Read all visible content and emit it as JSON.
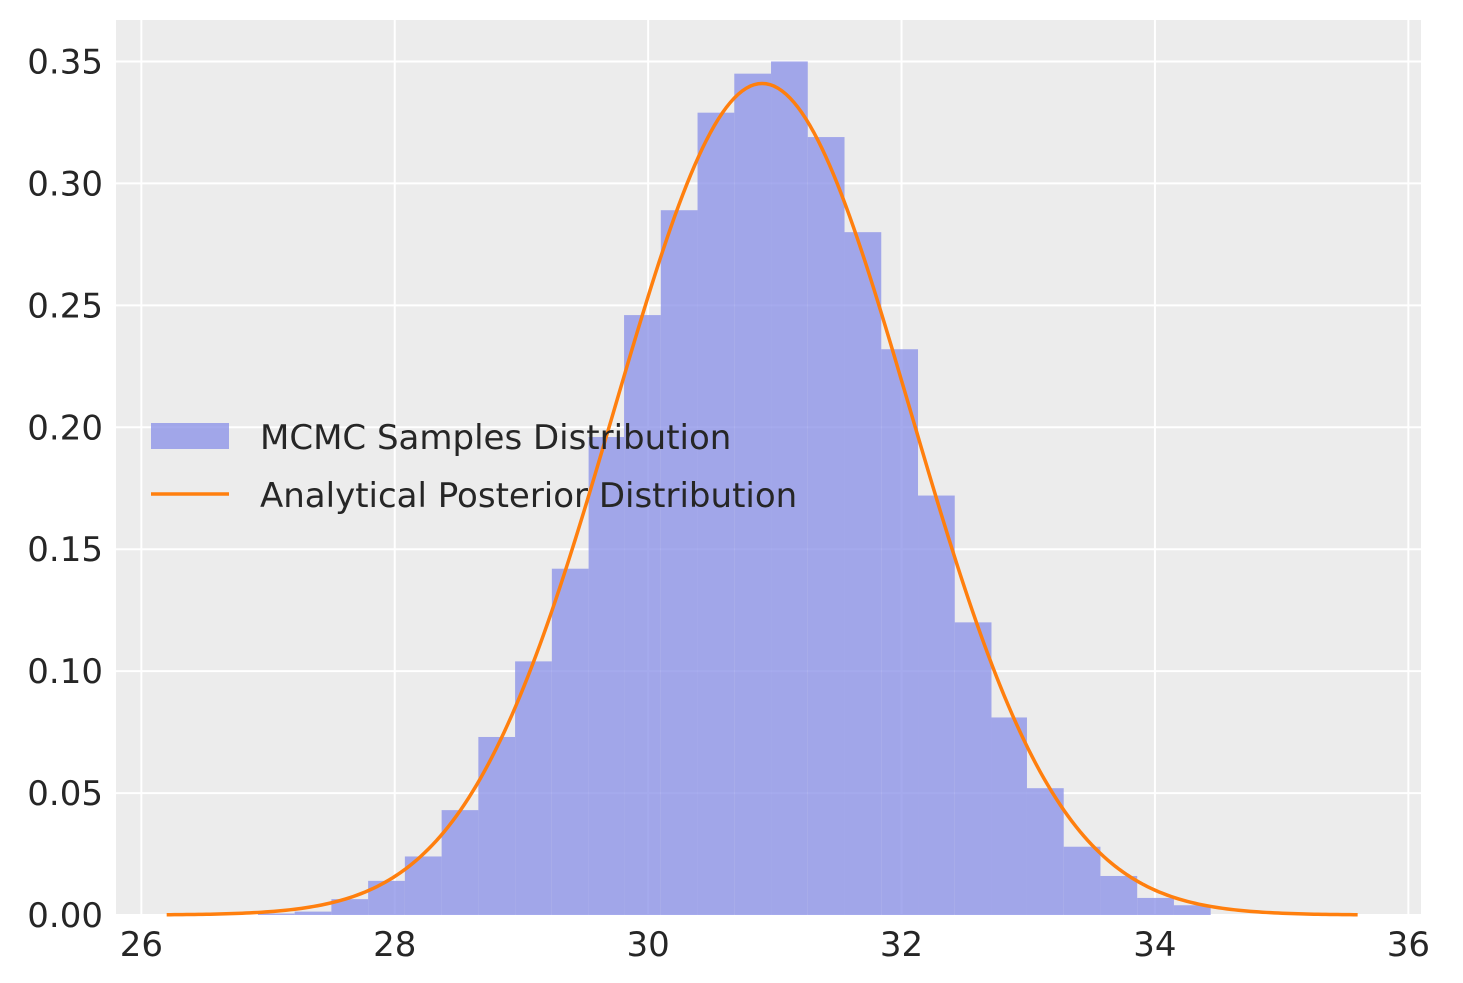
{
  "chart_data": {
    "type": "bar",
    "title": "",
    "xlabel": "",
    "ylabel": "",
    "xlim": [
      25.8,
      36.1
    ],
    "ylim": [
      0,
      0.367
    ],
    "grid": true,
    "legend_position": "center-left",
    "x_ticks": [
      26,
      28,
      30,
      32,
      34,
      36
    ],
    "x_tick_labels": [
      "26",
      "28",
      "30",
      "32",
      "34",
      "36"
    ],
    "y_ticks": [
      0,
      0.05,
      0.1,
      0.15,
      0.2,
      0.25,
      0.3,
      0.35
    ],
    "y_tick_labels": [
      "0.00",
      "0.05",
      "0.10",
      "0.15",
      "0.20",
      "0.25",
      "0.30",
      "0.35"
    ],
    "series": [
      {
        "name": "MCMC Samples Distribution",
        "kind": "histogram",
        "color": "#8f95e8",
        "bin_edges": [
          26.92,
          27.21,
          27.5,
          27.79,
          28.08,
          28.37,
          28.66,
          28.95,
          29.24,
          29.53,
          29.81,
          30.1,
          30.39,
          30.68,
          30.97,
          31.26,
          31.55,
          31.84,
          32.13,
          32.42,
          32.71,
          32.99,
          33.28,
          33.57,
          33.86,
          34.15,
          34.44
        ],
        "density": [
          0.0006,
          0.0014,
          0.0065,
          0.014,
          0.024,
          0.043,
          0.073,
          0.104,
          0.142,
          0.196,
          0.246,
          0.289,
          0.329,
          0.345,
          0.35,
          0.319,
          0.28,
          0.232,
          0.172,
          0.12,
          0.081,
          0.052,
          0.028,
          0.016,
          0.007,
          0.004
        ]
      },
      {
        "name": "Analytical Posterior Distribution",
        "kind": "line",
        "color": "#ff7f0e",
        "pdf": "normal",
        "mean": 30.9,
        "sd": 1.17,
        "x_range": [
          26.2,
          35.6
        ]
      }
    ]
  }
}
